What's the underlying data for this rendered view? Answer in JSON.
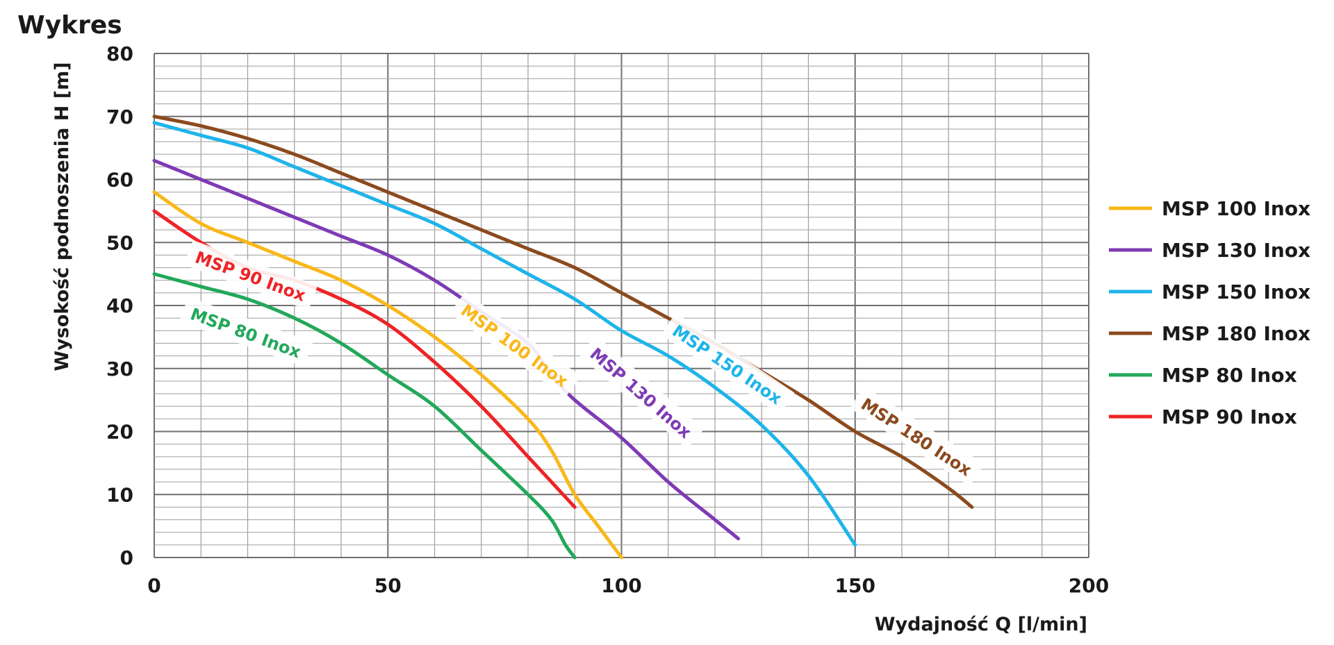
{
  "chart_data": {
    "type": "line",
    "title": "Wykres",
    "xlabel": "Wydajność Q [l/min]",
    "ylabel": "Wysokość podnoszenia H [m]",
    "xlim": [
      0,
      200
    ],
    "ylim": [
      0,
      80
    ],
    "x_ticks": [
      "0",
      "50",
      "100",
      "150",
      "200"
    ],
    "y_ticks": [
      "0",
      "10",
      "20",
      "30",
      "40",
      "50",
      "60",
      "70",
      "80"
    ],
    "grid": true,
    "legend_position": "right",
    "series": [
      {
        "name": "MSP 100 Inox",
        "color": "#F9B81A",
        "inline_label": "MSP 100 Inox",
        "points": [
          [
            0,
            58
          ],
          [
            10,
            53
          ],
          [
            20,
            50
          ],
          [
            30,
            47
          ],
          [
            40,
            44
          ],
          [
            50,
            40
          ],
          [
            60,
            35
          ],
          [
            70,
            29
          ],
          [
            80,
            22
          ],
          [
            85,
            17
          ],
          [
            90,
            10
          ],
          [
            95,
            5
          ],
          [
            100,
            0
          ]
        ]
      },
      {
        "name": "MSP 130 Inox",
        "color": "#7E3BB5",
        "inline_label": "MSP 130 Inox",
        "points": [
          [
            0,
            63
          ],
          [
            10,
            60
          ],
          [
            20,
            57
          ],
          [
            30,
            54
          ],
          [
            40,
            51
          ],
          [
            50,
            48
          ],
          [
            60,
            44
          ],
          [
            70,
            39
          ],
          [
            80,
            34
          ],
          [
            85,
            29
          ],
          [
            90,
            25
          ],
          [
            100,
            19
          ],
          [
            110,
            12
          ],
          [
            120,
            6
          ],
          [
            125,
            3
          ]
        ]
      },
      {
        "name": "MSP 150 Inox",
        "color": "#1EB4EA",
        "inline_label": "MSP 150 Inox",
        "points": [
          [
            0,
            69
          ],
          [
            10,
            67
          ],
          [
            20,
            65
          ],
          [
            30,
            62
          ],
          [
            40,
            59
          ],
          [
            50,
            56
          ],
          [
            60,
            53
          ],
          [
            70,
            49
          ],
          [
            80,
            45
          ],
          [
            90,
            41
          ],
          [
            100,
            36
          ],
          [
            110,
            32
          ],
          [
            120,
            27
          ],
          [
            130,
            21
          ],
          [
            140,
            13
          ],
          [
            150,
            2
          ]
        ]
      },
      {
        "name": "MSP 180 Inox",
        "color": "#8B4A1E",
        "inline_label": "MSP 180 Inox",
        "points": [
          [
            0,
            70
          ],
          [
            10,
            68.5
          ],
          [
            20,
            66.5
          ],
          [
            30,
            64
          ],
          [
            40,
            61
          ],
          [
            50,
            58
          ],
          [
            60,
            55
          ],
          [
            70,
            52
          ],
          [
            80,
            49
          ],
          [
            90,
            46
          ],
          [
            100,
            42
          ],
          [
            110,
            38
          ],
          [
            120,
            34
          ],
          [
            130,
            29.5
          ],
          [
            140,
            25
          ],
          [
            150,
            20
          ],
          [
            160,
            16
          ],
          [
            170,
            11
          ],
          [
            175,
            8
          ]
        ]
      },
      {
        "name": "MSP 80 Inox",
        "color": "#22A85A",
        "inline_label": "MSP 80 Inox",
        "points": [
          [
            0,
            45
          ],
          [
            10,
            43
          ],
          [
            20,
            41
          ],
          [
            30,
            38
          ],
          [
            40,
            34
          ],
          [
            50,
            29
          ],
          [
            60,
            24
          ],
          [
            70,
            17
          ],
          [
            80,
            10
          ],
          [
            85,
            6
          ],
          [
            88,
            2
          ],
          [
            90,
            0
          ]
        ]
      },
      {
        "name": "MSP 90 Inox",
        "color": "#EE2326",
        "inline_label": "MSP 90 Inox",
        "points": [
          [
            0,
            55
          ],
          [
            10,
            50
          ],
          [
            20,
            46
          ],
          [
            30,
            44
          ],
          [
            40,
            41
          ],
          [
            50,
            37
          ],
          [
            60,
            31
          ],
          [
            70,
            24
          ],
          [
            80,
            16
          ],
          [
            85,
            12
          ],
          [
            90,
            8
          ]
        ]
      }
    ]
  }
}
